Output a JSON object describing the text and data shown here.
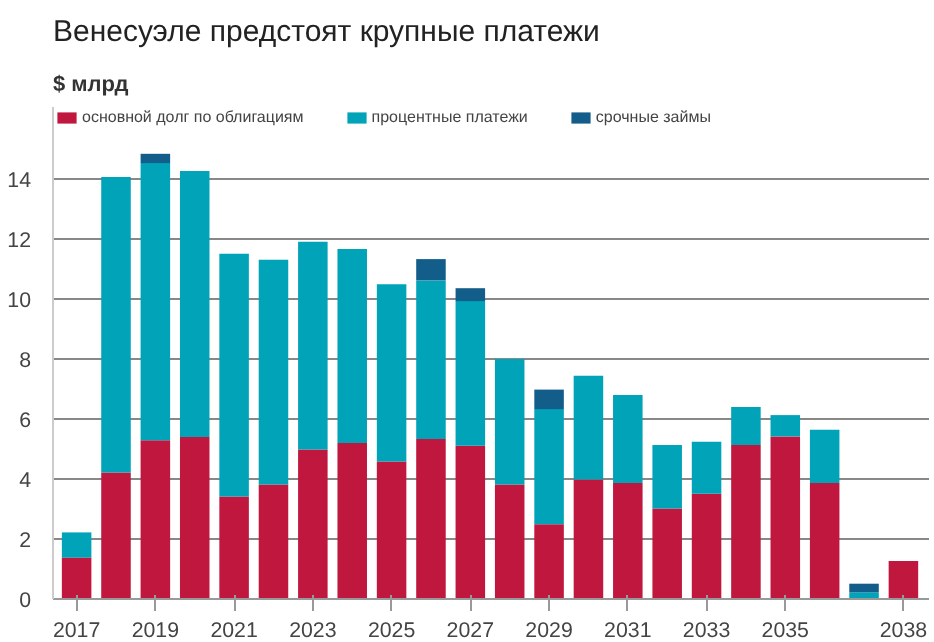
{
  "chart_data": {
    "type": "bar",
    "title": "Венесуэле предстоят крупные платежи",
    "subtitle": "$ млрд",
    "stacked": true,
    "x": [
      2017,
      2018,
      2019,
      2020,
      2021,
      2022,
      2023,
      2024,
      2025,
      2026,
      2027,
      2028,
      2029,
      2030,
      2031,
      2032,
      2033,
      2034,
      2035,
      2036,
      2037,
      2038
    ],
    "series": [
      {
        "name": "основной долг по облигациям",
        "color": "#c0173f",
        "values": [
          1.38,
          4.22,
          5.29,
          5.4,
          3.42,
          3.82,
          4.98,
          5.2,
          4.58,
          5.33,
          5.11,
          3.82,
          2.49,
          3.98,
          3.87,
          3.02,
          3.51,
          5.13,
          5.42,
          3.87,
          0,
          1.27
        ]
      },
      {
        "name": "процентные платежи",
        "color": "#00a3b8",
        "values": [
          0.84,
          9.85,
          9.24,
          8.87,
          8.09,
          7.49,
          6.93,
          6.47,
          5.91,
          5.29,
          4.82,
          4.18,
          3.84,
          3.46,
          2.93,
          2.11,
          1.73,
          1.27,
          0.71,
          1.77,
          0.22,
          0
        ]
      },
      {
        "name": "срочные займы",
        "color": "#135d8a",
        "values": [
          0,
          0,
          0.31,
          0,
          0,
          0,
          0,
          0,
          0,
          0.71,
          0.43,
          0,
          0.65,
          0,
          0,
          0,
          0,
          0,
          0,
          0,
          0.29,
          0
        ]
      }
    ],
    "xlim": [
      2016.4,
      2038.65
    ],
    "xticks": [
      2017,
      2019,
      2021,
      2023,
      2025,
      2027,
      2029,
      2031,
      2033,
      2035,
      2038
    ],
    "ylim": [
      0,
      16.4
    ],
    "yticks": [
      0,
      2,
      4,
      6,
      8,
      10,
      12,
      14
    ],
    "grid": "y",
    "legend": "top"
  }
}
